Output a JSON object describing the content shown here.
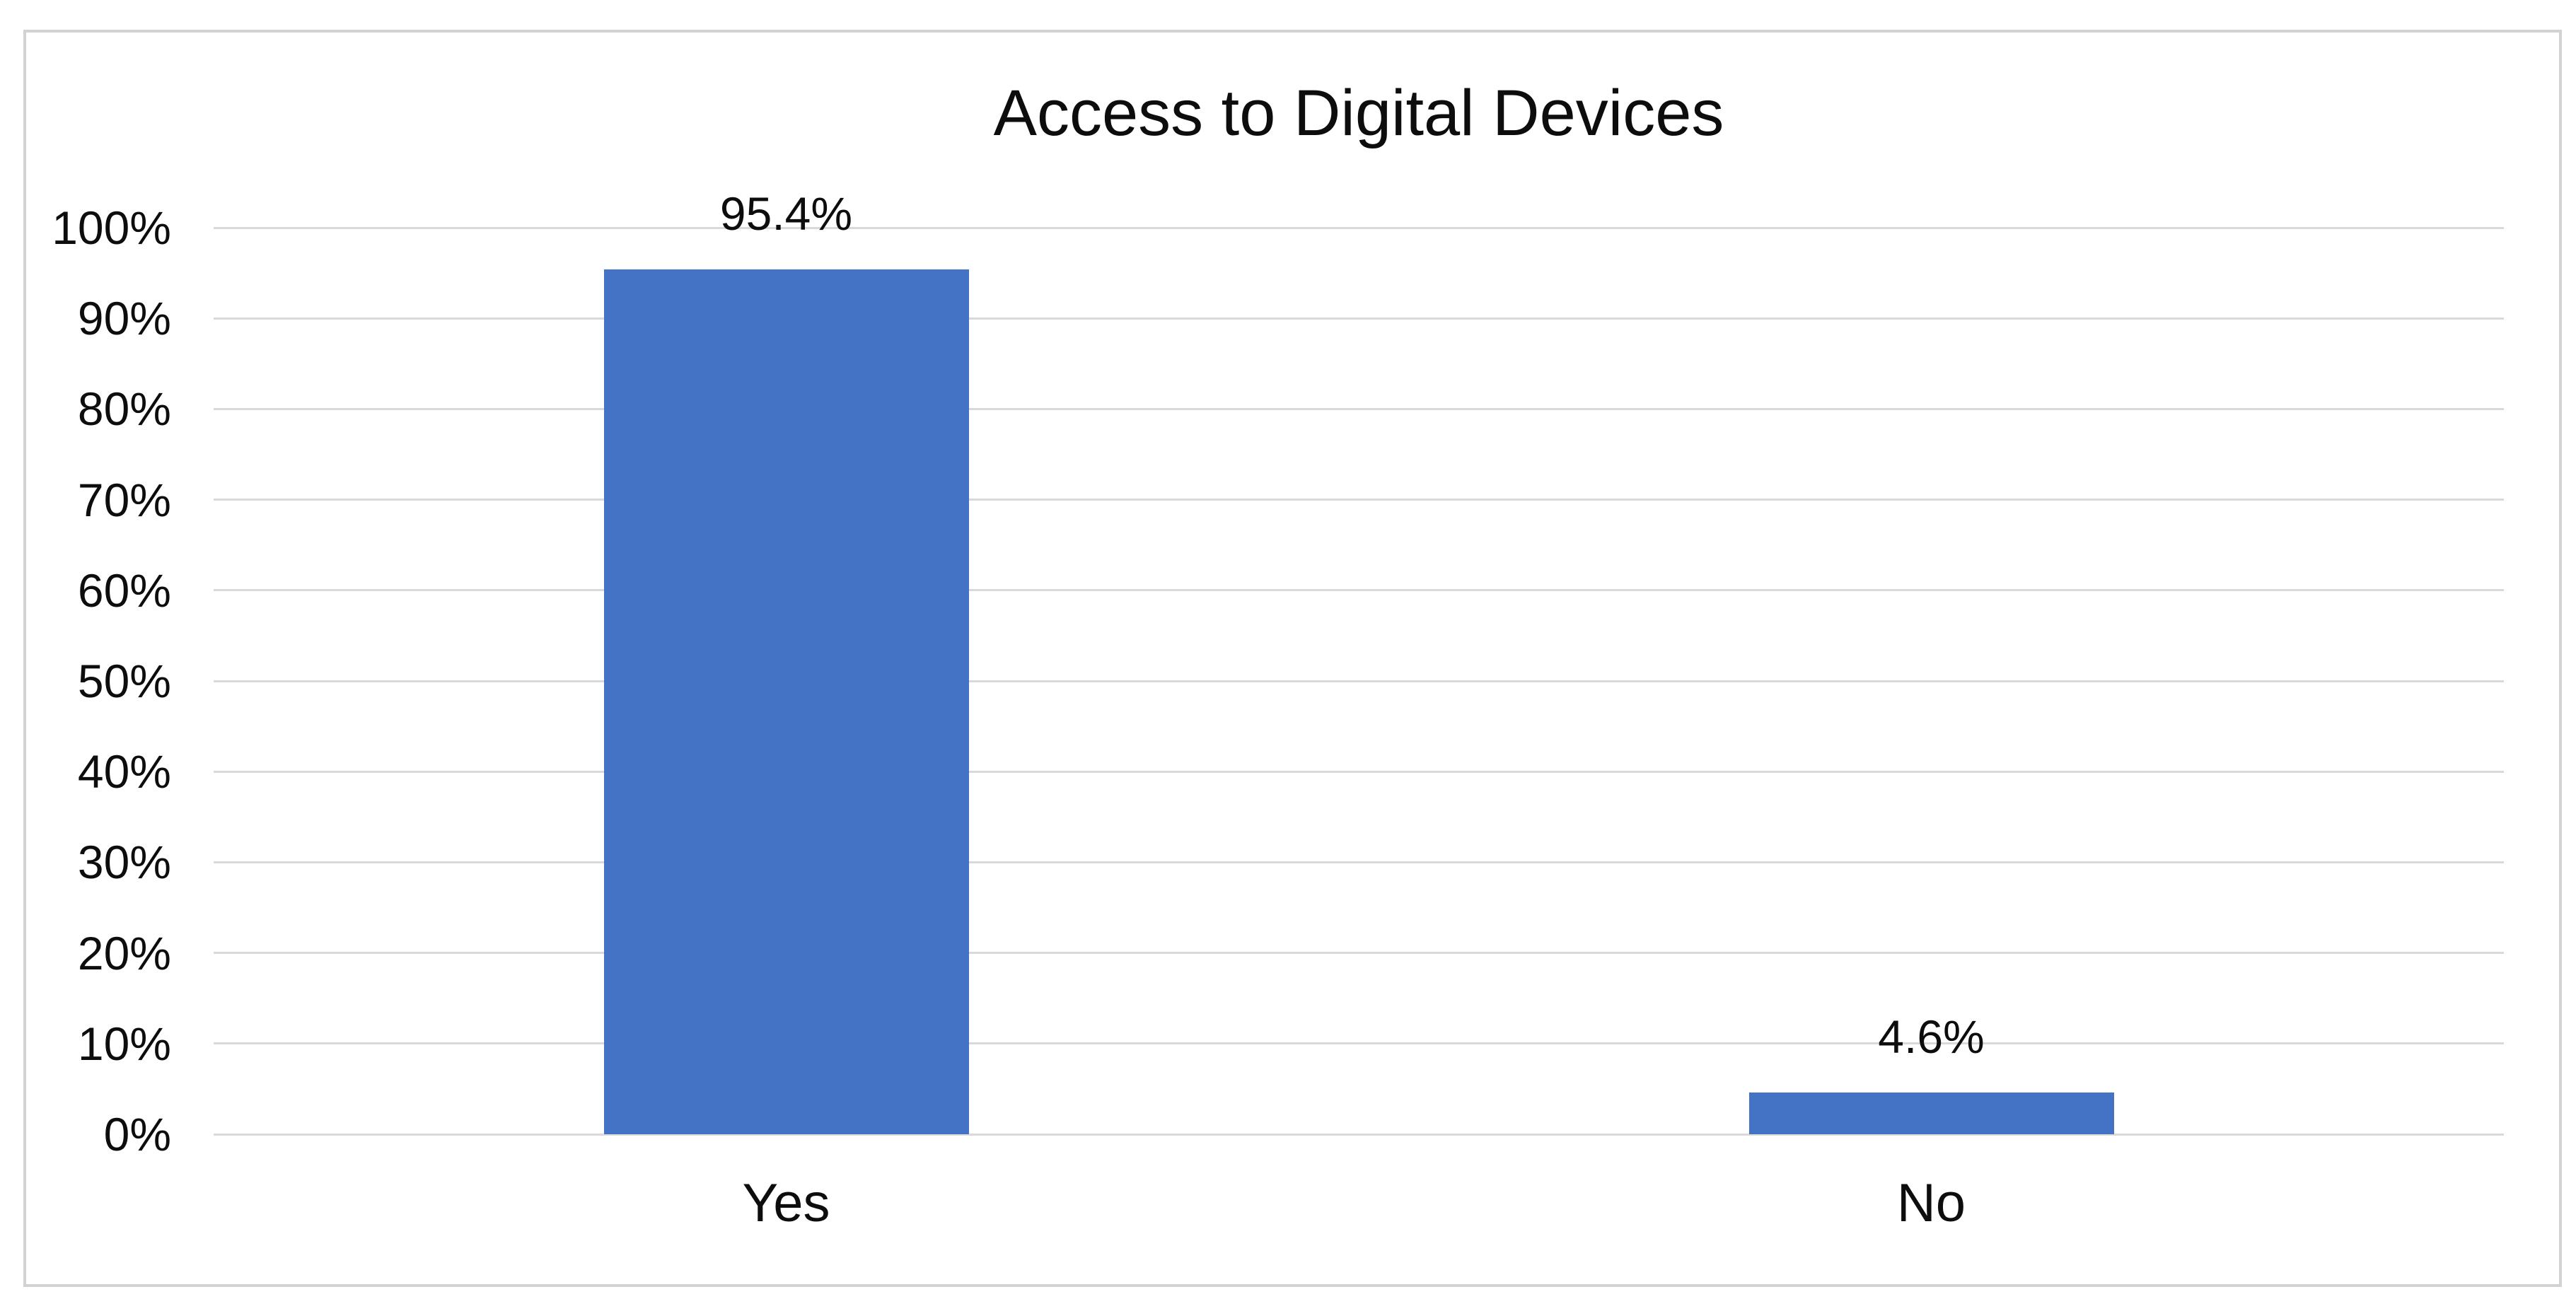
{
  "chart_data": {
    "type": "bar",
    "title": "Access to Digital Devices",
    "categories": [
      "Yes",
      "No"
    ],
    "values": [
      95.4,
      4.6
    ],
    "data_labels": [
      "95.4%",
      "4.6%"
    ],
    "y_ticks": [
      "0%",
      "10%",
      "20%",
      "30%",
      "40%",
      "50%",
      "60%",
      "70%",
      "80%",
      "90%",
      "100%"
    ],
    "ylim": [
      0,
      100
    ],
    "y_tick_step": 10,
    "xlabel": "",
    "ylabel": "",
    "grid": "on",
    "legend": "none",
    "bar_color": "#4472C4",
    "gridline_color": "#D9D9D9",
    "frame_border_color": "#D2D2D2",
    "text_color": "#0D0D0D",
    "background_color": "#FFFFFF"
  }
}
